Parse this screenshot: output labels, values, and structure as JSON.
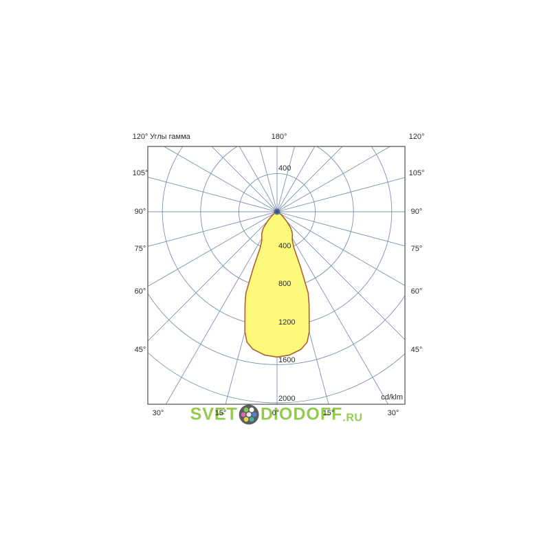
{
  "chart_data": {
    "type": "polar_photometric",
    "title": "Углы гамма",
    "units_label": "cd/klm",
    "top_axis_label": "180°",
    "side_angle_labels": [
      "120°",
      "105°",
      "90°",
      "75°",
      "60°",
      "45°"
    ],
    "bottom_angle_labels": [
      "30°",
      "15°",
      "0°",
      "15°",
      "30°"
    ],
    "radial_tick_labels": [
      "400",
      "800",
      "1200",
      "1600",
      "2000"
    ],
    "upper_radial_tick_label": "400",
    "radial_axis_max": 2000,
    "radial_tick_step": 400,
    "angle_step_deg": 15,
    "grid_on": true,
    "curve": {
      "name": "luminous-intensity-distribution",
      "symmetric": true,
      "gamma_deg": [
        0,
        5,
        10,
        13,
        15,
        17,
        19,
        21,
        23,
        25,
        28,
        31,
        35,
        40,
        45,
        50,
        55,
        60,
        70,
        80,
        90
      ],
      "intensity_cd_klm": [
        1520,
        1505,
        1460,
        1400,
        1300,
        1150,
        1030,
        910,
        630,
        420,
        340,
        310,
        280,
        225,
        145,
        85,
        50,
        25,
        10,
        5,
        0
      ]
    },
    "colors": {
      "grid": "#7d90b0",
      "frame": "#4f4f4f",
      "curve_fill": "#FCF97B",
      "curve_stroke": "#AD6030",
      "text": "#2b2b2b",
      "lamp_dot": "#4a648e",
      "lamp_dot_core": "#33507e"
    }
  },
  "watermark": {
    "part1": "SVET",
    "part2": "DIODOFF",
    "tld": ".RU",
    "text_color": "#8CC63F",
    "logo_ring_color": "#4f4f4f",
    "logo_center_dot_color": "#dcebf7",
    "logo_dot_colors": [
      "#ffffff",
      "#4677c8",
      "#39a8a2",
      "#e8d23c",
      "#d95fa8",
      "#7ec142"
    ]
  }
}
